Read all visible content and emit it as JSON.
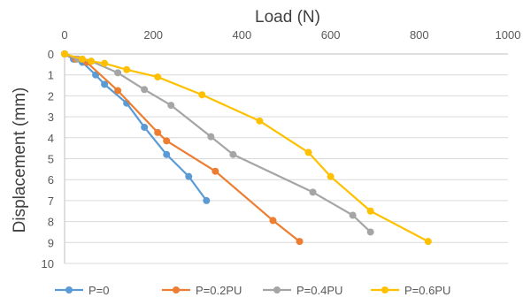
{
  "chart_data": {
    "type": "line",
    "xlabel": "Load (N)",
    "ylabel": "Displacement (mm)",
    "x_axis_position": "top",
    "y_axis_reversed": true,
    "xlim": [
      0,
      1000
    ],
    "ylim": [
      0,
      10
    ],
    "x_ticks": [
      "0",
      "200",
      "400",
      "600",
      "800",
      "1000"
    ],
    "y_ticks": [
      "0",
      "1",
      "2",
      "3",
      "4",
      "5",
      "6",
      "7",
      "8",
      "9",
      "10"
    ],
    "grid": "horizontal",
    "legend_position": "bottom",
    "series": [
      {
        "name": "P=0",
        "color": "#5B9BD5",
        "points": [
          [
            0,
            0
          ],
          [
            20,
            0.25
          ],
          [
            40,
            0.4
          ],
          [
            70,
            1.0
          ],
          [
            90,
            1.45
          ],
          [
            140,
            2.35
          ],
          [
            180,
            3.5
          ],
          [
            230,
            4.8
          ],
          [
            280,
            5.85
          ],
          [
            320,
            7.0
          ]
        ]
      },
      {
        "name": "P=0.2PU",
        "color": "#ED7D31",
        "points": [
          [
            0,
            0
          ],
          [
            25,
            0.25
          ],
          [
            50,
            0.4
          ],
          [
            120,
            1.75
          ],
          [
            210,
            3.75
          ],
          [
            230,
            4.15
          ],
          [
            340,
            5.6
          ],
          [
            470,
            7.95
          ],
          [
            530,
            8.95
          ]
        ]
      },
      {
        "name": "P=0.4PU",
        "color": "#A5A5A5",
        "points": [
          [
            0,
            0
          ],
          [
            30,
            0.25
          ],
          [
            60,
            0.35
          ],
          [
            120,
            0.9
          ],
          [
            180,
            1.7
          ],
          [
            240,
            2.45
          ],
          [
            330,
            3.95
          ],
          [
            380,
            4.8
          ],
          [
            560,
            6.6
          ],
          [
            650,
            7.7
          ],
          [
            690,
            8.5
          ]
        ]
      },
      {
        "name": "P=0.6PU",
        "color": "#FFC000",
        "points": [
          [
            0,
            0
          ],
          [
            40,
            0.25
          ],
          [
            60,
            0.35
          ],
          [
            90,
            0.45
          ],
          [
            140,
            0.75
          ],
          [
            210,
            1.1
          ],
          [
            310,
            1.95
          ],
          [
            440,
            3.2
          ],
          [
            550,
            4.7
          ],
          [
            600,
            5.85
          ],
          [
            690,
            7.5
          ],
          [
            820,
            8.95
          ]
        ]
      }
    ]
  }
}
